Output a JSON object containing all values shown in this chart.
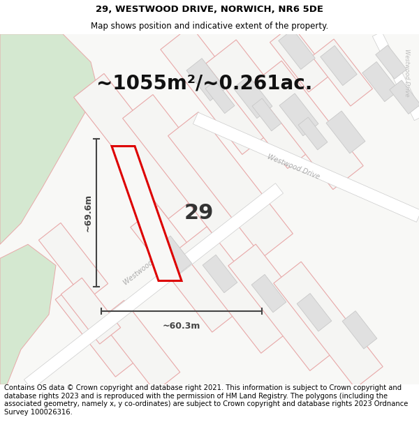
{
  "title_line1": "29, WESTWOOD DRIVE, NORWICH, NR6 5DE",
  "title_line2": "Map shows position and indicative extent of the property.",
  "area_text": "~1055m²/~0.261ac.",
  "number_label": "29",
  "dim_width": "~60.3m",
  "dim_height": "~69.6m",
  "road_label": "Westwood Drive",
  "footer_text": "Contains OS data © Crown copyright and database right 2021. This information is subject to Crown copyright and database rights 2023 and is reproduced with the permission of HM Land Registry. The polygons (including the associated geometry, namely x, y co-ordinates) are subject to Crown copyright and database rights 2023 Ordnance Survey 100026316.",
  "bg_color": "#ffffff",
  "map_bg": "#f8f8f6",
  "highlight_color": "#dd0000",
  "plot_fill": "#f8f8f6",
  "green_fill": "#d4e8d0",
  "road_color": "#ffffff",
  "plot_outline_color": "#e8a8a8",
  "building_color": "#e0e0e0",
  "building_edge": "#c8c8c8",
  "dim_color": "#444444",
  "title_fontsize": 9.5,
  "subtitle_fontsize": 8.5,
  "area_fontsize": 20,
  "number_fontsize": 22,
  "footer_fontsize": 7.2,
  "road_label_color": "#aaaaaa",
  "road_label_size": 7
}
